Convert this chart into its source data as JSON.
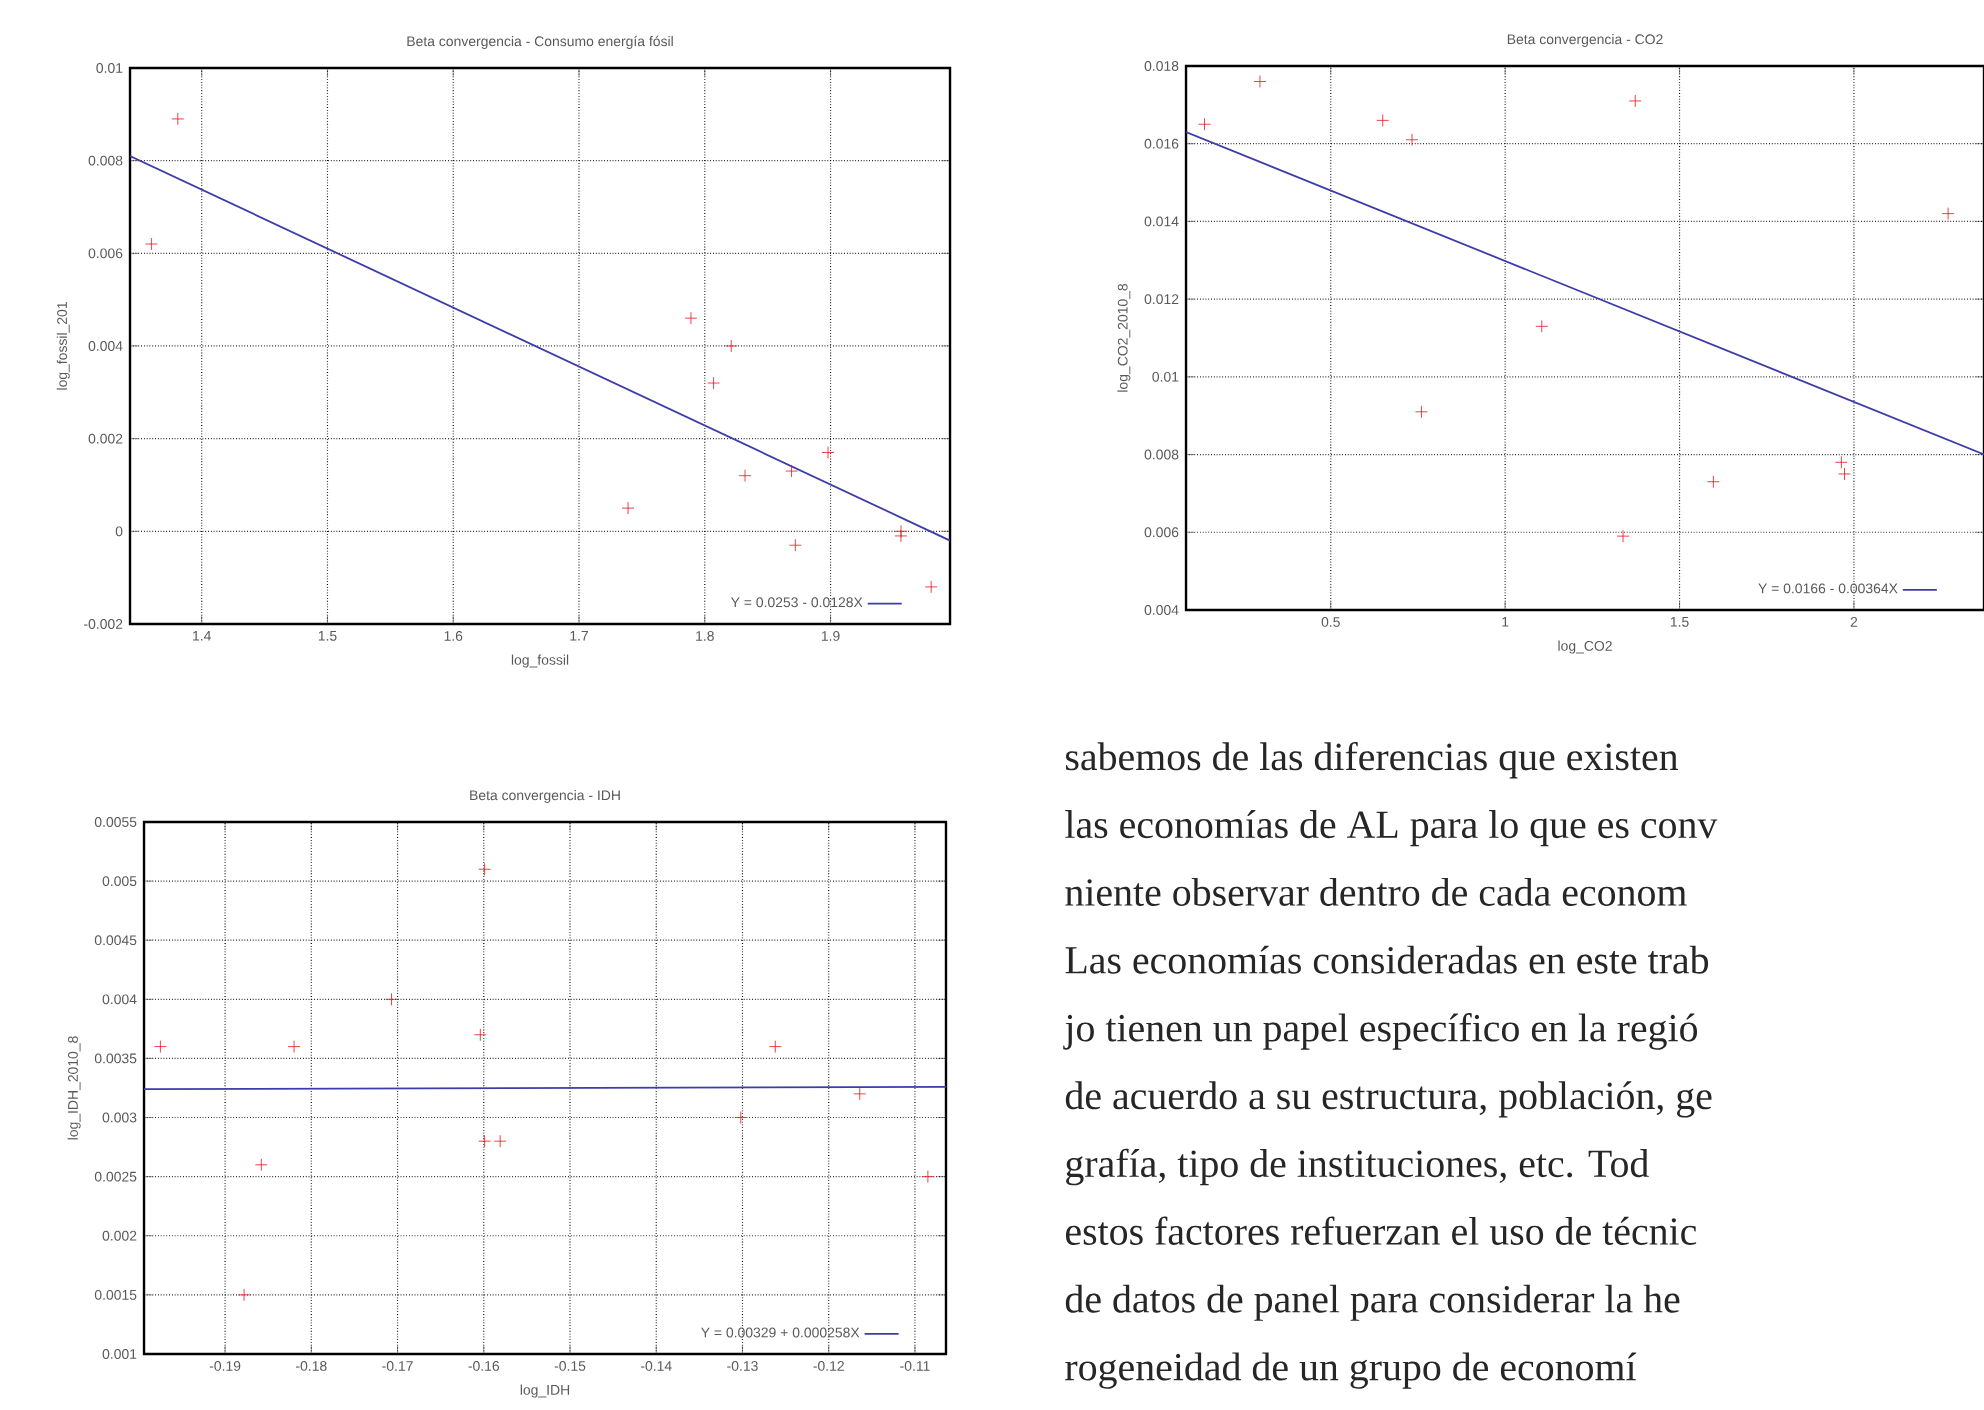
{
  "chart_data": [
    {
      "type": "scatter",
      "title": "Beta convergencia - Consumo energía fósil",
      "xlabel": "log_fossil",
      "ylabel": "log_fossil_201",
      "xlim": [
        1.343,
        1.995
      ],
      "ylim": [
        -0.002,
        0.01
      ],
      "xticks": [
        1.4,
        1.5,
        1.6,
        1.7,
        1.8,
        1.9
      ],
      "yticks": [
        -0.002,
        0,
        0.002,
        0.004,
        0.006,
        0.008,
        0.01
      ],
      "grid": true,
      "legend": "bottom right",
      "series": [
        {
          "type": "scatter",
          "color": "#e8141c",
          "marker": "cross",
          "x": [
            1.36,
            1.381,
            1.739,
            1.789,
            1.807,
            1.821,
            1.832,
            1.869,
            1.872,
            1.898,
            1.956,
            1.956,
            1.98
          ],
          "values": [
            0.0062,
            0.0089,
            0.0005,
            0.0046,
            0.0032,
            0.004,
            0.0012,
            0.0013,
            -0.0003,
            0.0017,
            0.0,
            -0.0001,
            -0.0012
          ]
        },
        {
          "type": "line",
          "name": "Y = 0.0253 - 0.0128X",
          "color": "#3c3caa",
          "marker": "none",
          "x": [
            1.343,
            1.995
          ],
          "values": [
            0.0081,
            -0.0002
          ]
        }
      ]
    },
    {
      "type": "scatter",
      "title": "Beta convergencia - CO2",
      "xlabel": "log_CO2",
      "ylabel": "log_CO2_2010_8",
      "xlim": [
        0.085,
        2.373
      ],
      "ylim": [
        0.004,
        0.018
      ],
      "xticks": [
        0.5,
        1,
        1.5,
        2
      ],
      "yticks": [
        0.004,
        0.006,
        0.008,
        0.01,
        0.012,
        0.014,
        0.016,
        0.018
      ],
      "grid": true,
      "legend": "bottom right",
      "series": [
        {
          "type": "scatter",
          "color": "#e8141c",
          "marker": "cross",
          "x": [
            0.138,
            0.297,
            0.649,
            0.733,
            0.76,
            1.105,
            1.338,
            1.373,
            1.597,
            1.964,
            1.973,
            2.27
          ],
          "values": [
            0.0165,
            0.0176,
            0.0166,
            0.0161,
            0.0091,
            0.0113,
            0.0059,
            0.0171,
            0.0073,
            0.0078,
            0.0075,
            0.0142
          ]
        },
        {
          "type": "line",
          "name": "Y = 0.0166 - 0.00364X",
          "color": "#3c3caa",
          "marker": "none",
          "x": [
            0.085,
            2.373
          ],
          "values": [
            0.0163,
            0.008
          ]
        }
      ]
    },
    {
      "type": "scatter",
      "title": "Beta convergencia - IDH",
      "xlabel": "log_IDH",
      "ylabel": "log_IDH_2010_8",
      "xlim": [
        -0.1994,
        -0.1064
      ],
      "ylim": [
        0.001,
        0.0055
      ],
      "xticks": [
        -0.19,
        -0.18,
        -0.17,
        -0.16,
        -0.15,
        -0.14,
        -0.13,
        -0.12,
        -0.11
      ],
      "yticks": [
        0.001,
        0.0015,
        0.002,
        0.0025,
        0.003,
        0.0035,
        0.004,
        0.0045,
        0.005,
        0.0055
      ],
      "grid": true,
      "legend": "bottom right",
      "series": [
        {
          "type": "scatter",
          "color": "#e8141c",
          "marker": "cross",
          "x": [
            -0.1975,
            -0.1878,
            -0.1858,
            -0.182,
            -0.1707,
            -0.1604,
            -0.1599,
            -0.1599,
            -0.1581,
            -0.1302,
            -0.1262,
            -0.1164,
            -0.1085
          ],
          "values": [
            0.0036,
            0.0015,
            0.0026,
            0.0036,
            0.004,
            0.0037,
            0.0051,
            0.0028,
            0.0028,
            0.003,
            0.0036,
            0.0032,
            0.0025
          ]
        },
        {
          "type": "line",
          "name": "Y = 0.00329 + 0.000258X",
          "color": "#3c3caa",
          "marker": "none",
          "x": [
            -0.1994,
            -0.1064
          ],
          "values": [
            0.00324,
            0.00326
          ]
        }
      ]
    },
    {
      "type": "other",
      "annotations": [
        "sabemos de las diferencias que existen",
        "las economías de AL para lo que es conv",
        "niente observar dentro de cada econom",
        "Las economías consideradas en este trab",
        "jo tienen un papel específico en la regió",
        "de acuerdo a su estructura, población, ge",
        "grafía, tipo de instituciones, etc. Tod",
        "estos factores refuerzan el uso de técnic",
        "de datos de panel para considerar la he",
        "rogeneidad de un grupo de economí"
      ]
    }
  ]
}
